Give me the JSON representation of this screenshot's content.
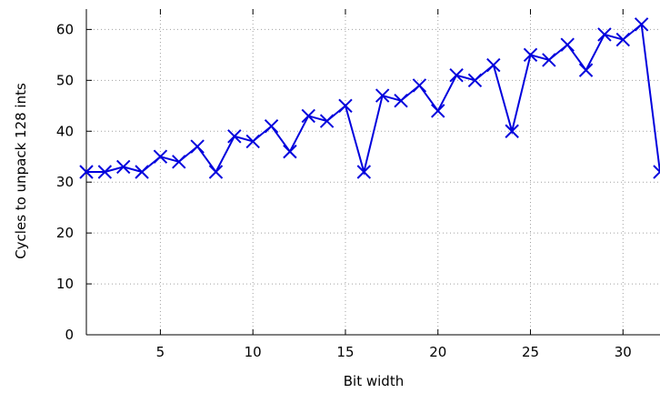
{
  "chart_data": {
    "type": "line",
    "xlabel": "Bit width",
    "ylabel": "Cycles to unpack 128 ints",
    "xlim": [
      1,
      32
    ],
    "ylim": [
      0,
      64
    ],
    "xticks": [
      5,
      10,
      15,
      20,
      25,
      30
    ],
    "yticks": [
      0,
      10,
      20,
      30,
      40,
      50,
      60
    ],
    "grid": true,
    "legend": "none",
    "series": [
      {
        "color": "#0000dd",
        "marker": "x",
        "x": [
          1,
          2,
          3,
          4,
          5,
          6,
          7,
          8,
          9,
          10,
          11,
          12,
          13,
          14,
          15,
          16,
          17,
          18,
          19,
          20,
          21,
          22,
          23,
          24,
          25,
          26,
          27,
          28,
          29,
          30,
          31,
          32
        ],
        "y": [
          32,
          32,
          33,
          32,
          35,
          34,
          37,
          32,
          39,
          38,
          41,
          36,
          43,
          42,
          45,
          32,
          47,
          46,
          49,
          44,
          51,
          50,
          53,
          40,
          55,
          54,
          57,
          52,
          59,
          58,
          61,
          32
        ]
      }
    ]
  }
}
